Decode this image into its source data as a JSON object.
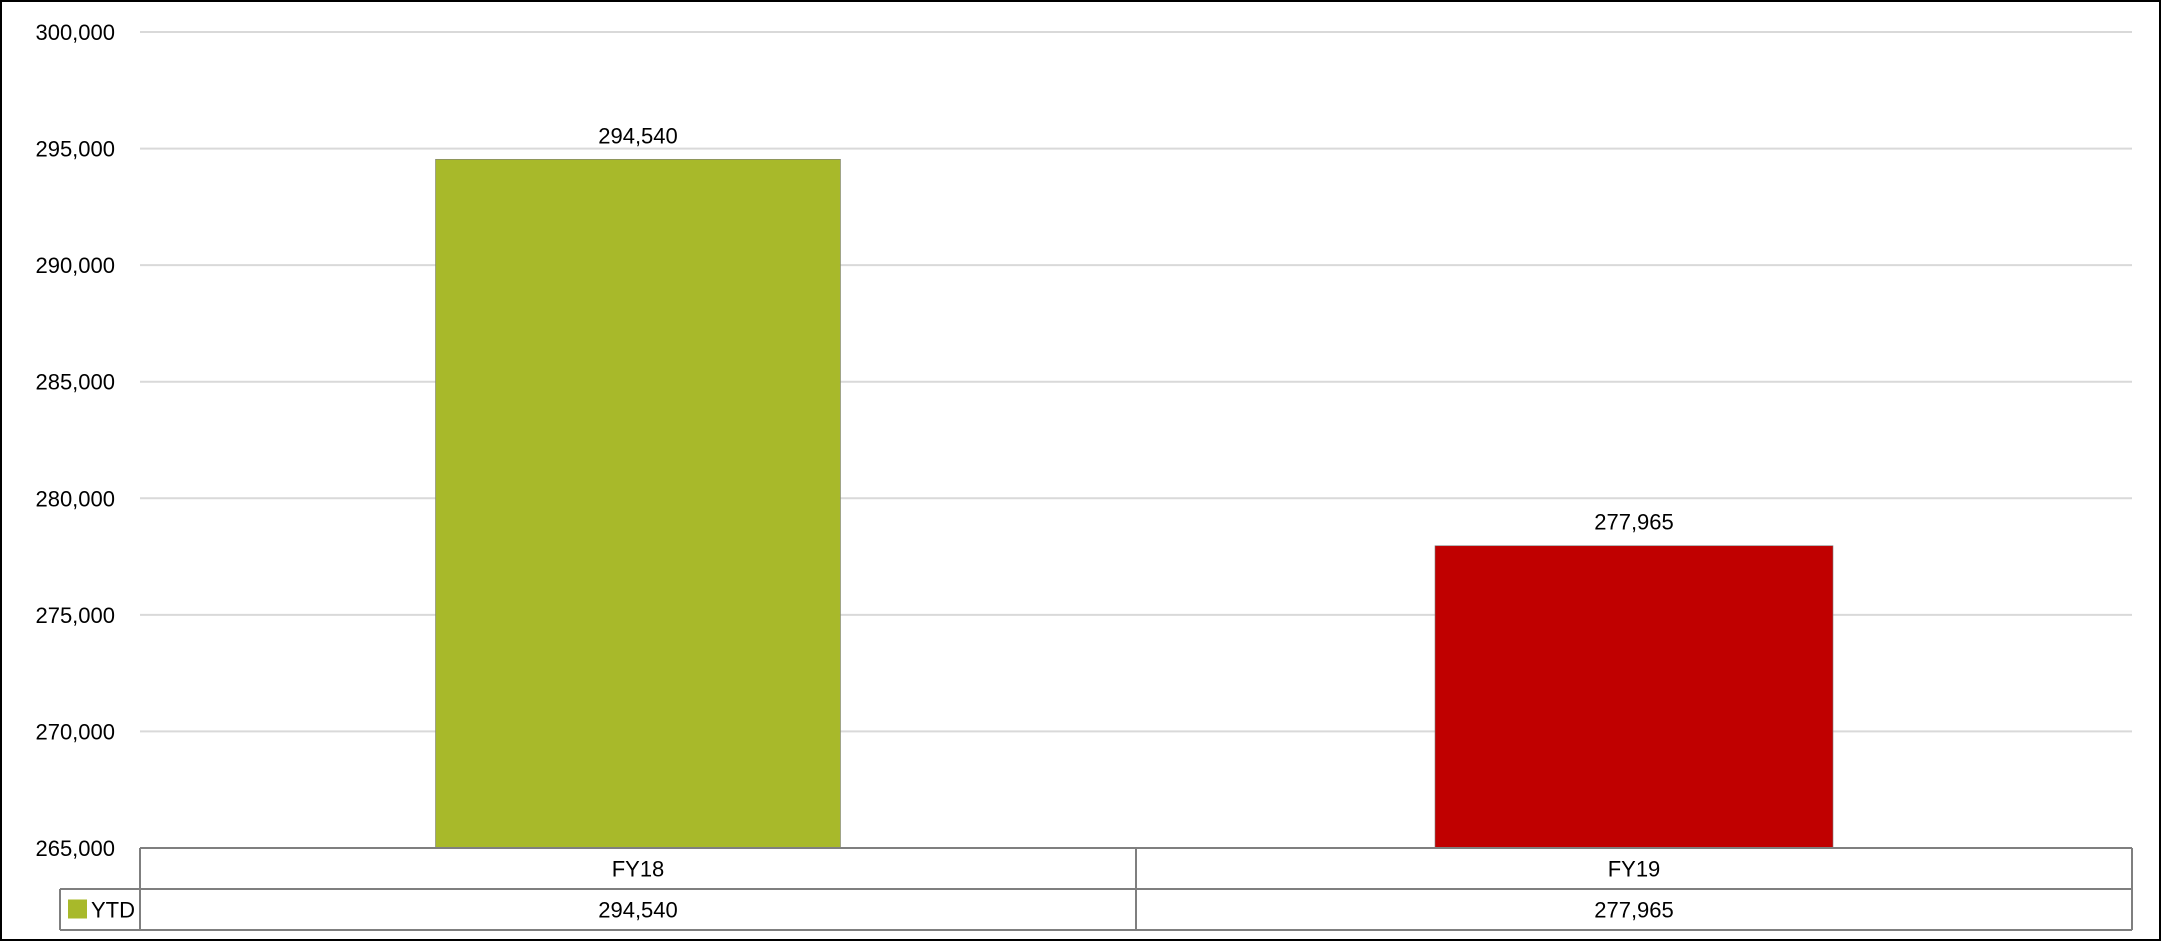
{
  "chart_data": {
    "type": "bar",
    "title": "",
    "xlabel": "",
    "ylabel": "",
    "categories": [
      "FY18",
      "FY19"
    ],
    "series": [
      {
        "name": "YTD",
        "values": [
          294540,
          277965
        ]
      }
    ],
    "value_labels": [
      "294,540",
      "277,965"
    ],
    "bar_colors": [
      "#a8b92a",
      "#c00000"
    ],
    "legend_color": "#a8b92a",
    "ylim": [
      265000,
      300000
    ],
    "yticks": [
      265000,
      270000,
      275000,
      280000,
      285000,
      290000,
      295000,
      300000
    ],
    "ytick_labels": [
      "265,000",
      "270,000",
      "275,000",
      "280,000",
      "285,000",
      "290,000",
      "295,000",
      "300,000"
    ],
    "grid": true,
    "legend": "data-table",
    "data_table": {
      "header": [
        "FY18",
        "FY19"
      ],
      "rows": [
        {
          "label": "YTD",
          "cells": [
            "294,540",
            "277,965"
          ]
        }
      ]
    }
  }
}
